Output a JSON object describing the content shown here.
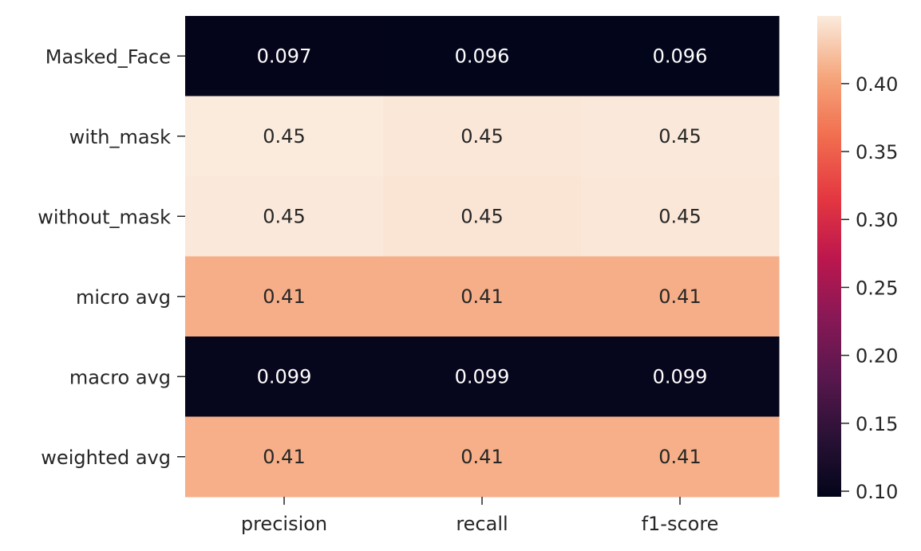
{
  "chart_data": {
    "type": "heatmap",
    "title": "",
    "xlabel": "",
    "ylabel": "",
    "columns": [
      "precision",
      "recall",
      "f1-score"
    ],
    "rows": [
      "Masked_Face",
      "with_mask",
      "without_mask",
      "micro avg",
      "macro avg",
      "weighted avg"
    ],
    "values": [
      [
        0.0967,
        0.0959,
        0.0963
      ],
      [
        0.4498,
        0.4472,
        0.4485
      ],
      [
        0.4482,
        0.4462,
        0.4472
      ],
      [
        0.4105,
        0.4105,
        0.4105
      ],
      [
        0.099,
        0.099,
        0.099
      ],
      [
        0.4106,
        0.4106,
        0.4106
      ]
    ],
    "annotations": [
      [
        "0.097",
        "0.096",
        "0.096"
      ],
      [
        "0.45",
        "0.45",
        "0.45"
      ],
      [
        "0.45",
        "0.45",
        "0.45"
      ],
      [
        "0.41",
        "0.41",
        "0.41"
      ],
      [
        "0.099",
        "0.099",
        "0.099"
      ],
      [
        "0.41",
        "0.41",
        "0.41"
      ]
    ],
    "colorbar": {
      "colormap": "rocket",
      "range": [
        0.0959,
        0.4498
      ],
      "ticks": [
        0.1,
        0.15,
        0.2,
        0.25,
        0.3,
        0.35,
        0.4
      ],
      "tick_labels": [
        "0.10",
        "0.15",
        "0.20",
        "0.25",
        "0.30",
        "0.35",
        "0.40"
      ]
    }
  }
}
